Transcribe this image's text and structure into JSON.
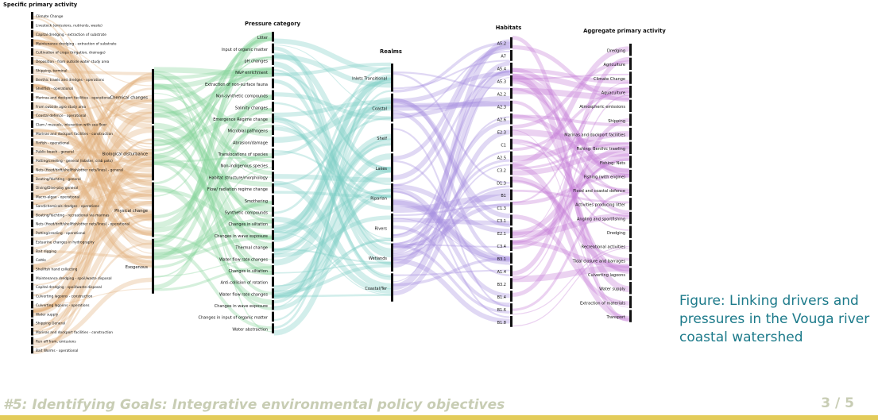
{
  "caption": "Figure: Linking drivers and pressures in the Vouga river coastal watershed",
  "footer": {
    "title": "#5: Identifying Goals: Integrative environmental policy objectives",
    "page": "3 / 5"
  },
  "colors": {
    "c1": "#e3b27f",
    "c2": "#86d39a",
    "c3": "#7fcfc7",
    "c4": "#a78ee0",
    "c5": "#c77fd6"
  },
  "chart_data": {
    "type": "sankey",
    "columns": [
      {
        "title": "Specific primary activity",
        "color": "#e3b27f",
        "nodes": [
          "Climate Change",
          "Livestock (emissions, nutrients, waste)",
          "Capital dredging - extraction of substrate",
          "Maintenance dredging - extraction of substrate",
          "Cultivation of crops (irrigation, drainage)",
          "Deposition - from outside water study area",
          "Shipping, terminal",
          "Benthic trawls and dredges - operations",
          "Shellfish - operational",
          "Marinas and dockport facilities - operational",
          "From outside agro study area",
          "Coastal defence - operational",
          "Clam / mussels, interaction with sea floor",
          "Marinas and dockport facilities - construction",
          "Finfish - operational",
          "Public beach - general",
          "Potting/creeling - general (lobster, crab pots)",
          "Nets (fixed/drift/shellfish/other nets/lines) - general",
          "Boating/Yachting - general",
          "Diving/Dive-play general",
          "Macro-algae - operational",
          "Sand/chemicals dredges - operations",
          "Boating/Yachting - recreational via marinas",
          "Nets (fixed/drift/shellfish/other nets/lines) - operational",
          "Potting/creeling - operational",
          "Estuarine changes in hydrography",
          "Bait digging",
          "Cattle",
          "Shellfish hand collecting",
          "Maintenance dredging - spoil/waste disposal",
          "Capital dredging - spoil/waste disposal",
          "Culverting lagoons - construction",
          "Culverting lagoons - operations",
          "Water supply",
          "Shipping General",
          "Marinas and dockport facilities - construction",
          "Run off from, emissions",
          "Bait Worms - operational"
        ]
      },
      {
        "title": "",
        "color": "#e3b27f",
        "nodes": [
          "Chemical changes",
          "Biological disturbance",
          "Physical change",
          "Exogenous"
        ]
      },
      {
        "title": "Pressure category",
        "color": "#86d39a",
        "nodes": [
          "Litter",
          "Input of organic matter",
          "pH changes",
          "N&P enrichment",
          "Extraction of non-surface fauna",
          "Non-synthetic compounds",
          "Salinity changes",
          "Emergence Regime change",
          "Microbial pathogens",
          "Abrasion/damage",
          "Translocations of species",
          "Non-indigenous species",
          "Habitat structure/morphology",
          "Flow/ radiation regime change",
          "Smothering",
          "Synthetic compounds",
          "Changes in siltation",
          "Changes in wave exposure",
          "Thermal change",
          "Water flow rate changes",
          "Changes in siltation",
          "Anti-collision of rotation",
          "Water flow rate changes",
          "Changes in wave exposure",
          "Changes in input of organic matter",
          "Water abstraction"
        ]
      },
      {
        "title": "Realms",
        "color": "#7fcfc7",
        "nodes": [
          "Inlets Transitional",
          "Coastal",
          "Shelf",
          "Lakes",
          "Riparian",
          "Rivers",
          "Wetlands",
          "Coastal/Ter"
        ]
      },
      {
        "title": "Habitats",
        "color": "#a78ee0",
        "nodes": [
          "A5.2",
          "A7",
          "A5.4",
          "A5.3",
          "A2.2",
          "A2.3",
          "A2.6",
          "E2.3",
          "C1",
          "A2.5",
          "C3.2",
          "D1.3",
          "B1",
          "C1.3",
          "C3.1",
          "E2.1",
          "C3.4",
          "B3.1",
          "A1.4",
          "B3.2",
          "B1.4",
          "B1.6",
          "B1.8"
        ]
      },
      {
        "title": "Aggregate primary activity",
        "color": "#c77fd6",
        "nodes": [
          "Dredging",
          "Agriculture",
          "Climate Change",
          "Aquaculture",
          "Atmospheric emissions",
          "Shipping",
          "Marinas and dockport facilities",
          "Fishing: Benthic trawling",
          "Fishing: Nets",
          "Fishing (with engine)",
          "Flood and coastal defence",
          "Activities producing litter",
          "Angling and sportfishing",
          "Dredging",
          "Recreational activities",
          "Tidal closure and barrages",
          "Culverting lagoons",
          "Water supply",
          "Extraction of materials",
          "Transport"
        ]
      }
    ]
  }
}
